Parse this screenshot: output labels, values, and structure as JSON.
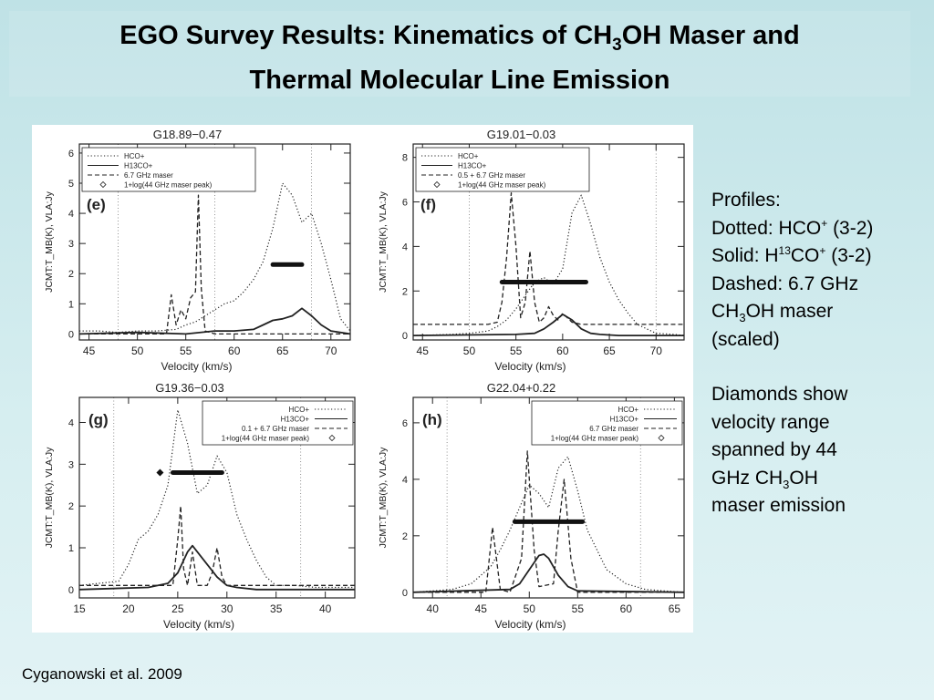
{
  "slide": {
    "title_line1_pre": "EGO Survey Results: Kinematics of CH",
    "title_line1_sub": "3",
    "title_line1_post": "OH Maser and",
    "title_line2": "Thermal Molecular Line Emission",
    "citation": "Cyganowski et al. 2009"
  },
  "sidebar": {
    "profiles_heading": "Profiles:",
    "dotted_pre": "Dotted: HCO",
    "dotted_sup": "+",
    "dotted_post": " (3-2)",
    "solid_pre": "Solid: H",
    "solid_sup1": "13",
    "solid_mid": "CO",
    "solid_sup2": "+",
    "solid_post": " (3-2)",
    "dashed_line1": "Dashed: 6.7 GHz",
    "dashed_line2_pre": "CH",
    "dashed_line2_sub": "3",
    "dashed_line2_post": "OH maser",
    "dashed_line3": "(scaled)",
    "diamonds_line1": "Diamonds show",
    "diamonds_line2": "velocity range",
    "diamonds_line3": "spanned by 44",
    "diamonds_line4_pre": "GHz CH",
    "diamonds_line4_sub": "3",
    "diamonds_line4_post": "OH",
    "diamonds_line5": "maser emission"
  },
  "colors": {
    "ink": "#222222",
    "panel_bg": "#ffffff"
  },
  "chart_data": [
    {
      "type": "line",
      "panel": "(e)",
      "title": "G18.89−0.47",
      "xlabel": "Velocity (km/s)",
      "ylabel": "JCMT:T_MB(K), VLA:Jy",
      "xlim": [
        44,
        72
      ],
      "ylim": [
        -0.2,
        6.3
      ],
      "xticks": [
        45,
        50,
        55,
        60,
        65,
        70
      ],
      "yticks": [
        0,
        1,
        2,
        3,
        4,
        5,
        6
      ],
      "vlines": [
        48,
        58,
        68
      ],
      "legend": [
        "HCO+",
        "H13CO+",
        "6.7 GHz maser",
        "1+log(44 GHz maser peak)"
      ],
      "legend_position": "top-left",
      "series": [
        {
          "name": "HCO+",
          "style": "dotted",
          "x": [
            44,
            46,
            48,
            50,
            52,
            54,
            55,
            56,
            57,
            58,
            59,
            60,
            61,
            62,
            63,
            64,
            65,
            66,
            67,
            68,
            69,
            70,
            71,
            72
          ],
          "y": [
            0.1,
            0.1,
            0.05,
            0.1,
            0.1,
            0.15,
            0.3,
            0.4,
            0.6,
            0.8,
            1.0,
            1.1,
            1.4,
            1.8,
            2.4,
            3.5,
            5.0,
            4.6,
            3.7,
            4.0,
            3.0,
            1.8,
            0.5,
            0.1
          ]
        },
        {
          "name": "H13CO+",
          "style": "solid",
          "x": [
            44,
            50,
            55,
            58,
            60,
            62,
            63,
            64,
            65,
            66,
            67,
            68,
            69,
            70,
            72
          ],
          "y": [
            0.0,
            0.05,
            0.0,
            0.1,
            0.1,
            0.15,
            0.3,
            0.45,
            0.5,
            0.6,
            0.85,
            0.6,
            0.3,
            0.1,
            0.0
          ]
        },
        {
          "name": "6.7 GHz maser",
          "style": "dashed",
          "x": [
            44,
            53,
            53.5,
            54,
            54.5,
            55,
            55.5,
            56,
            56.3,
            56.6,
            57,
            57.5,
            58,
            72
          ],
          "y": [
            0.0,
            0.0,
            1.3,
            0.3,
            0.8,
            0.5,
            1.2,
            1.4,
            4.6,
            1.5,
            0.1,
            0.05,
            0.0,
            0.0
          ]
        }
      ],
      "maser_44ghz_range": {
        "x": [
          64,
          67
        ],
        "y": 2.3
      }
    },
    {
      "type": "line",
      "panel": "(f)",
      "title": "G19.01−0.03",
      "xlabel": "Velocity (km/s)",
      "ylabel": "JCMT:T_MB(K), VLA:Jy",
      "xlim": [
        44,
        73
      ],
      "ylim": [
        -0.2,
        8.6
      ],
      "xticks": [
        45,
        50,
        55,
        60,
        65,
        70
      ],
      "yticks": [
        0,
        2,
        4,
        6,
        8
      ],
      "vlines": [
        50,
        70
      ],
      "legend": [
        "HCO+",
        "H13CO+",
        "0.5 + 6.7 GHz maser",
        "1+log(44 GHz maser peak)"
      ],
      "legend_position": "top-left",
      "series": [
        {
          "name": "HCO+",
          "style": "dotted",
          "x": [
            44,
            48,
            50,
            52,
            53,
            54,
            55,
            56,
            57,
            58,
            59,
            60,
            61,
            62,
            63,
            64,
            65,
            66,
            67,
            68,
            70,
            72,
            73
          ],
          "y": [
            0.0,
            0.05,
            0.1,
            0.2,
            0.4,
            0.7,
            1.2,
            1.8,
            2.4,
            2.6,
            2.3,
            3.0,
            5.5,
            6.3,
            5.0,
            3.5,
            2.4,
            1.6,
            1.0,
            0.5,
            0.1,
            0.05,
            0.0
          ]
        },
        {
          "name": "H13CO+",
          "style": "solid",
          "x": [
            44,
            55,
            57,
            58,
            59,
            60,
            61,
            62,
            63,
            64,
            66,
            73
          ],
          "y": [
            0.0,
            0.05,
            0.1,
            0.3,
            0.6,
            0.95,
            0.7,
            0.3,
            0.1,
            0.05,
            0.0,
            0.0
          ]
        },
        {
          "name": "0.5 + 6.7 GHz maser",
          "style": "dashed",
          "x": [
            44,
            52,
            53,
            53.5,
            54,
            54.5,
            55,
            55.5,
            56,
            56.5,
            57,
            57.5,
            58,
            58.5,
            59,
            59.5,
            60,
            61,
            62,
            73
          ],
          "y": [
            0.5,
            0.5,
            0.6,
            1.5,
            3.5,
            6.4,
            4.0,
            0.8,
            1.5,
            3.8,
            1.5,
            0.6,
            0.8,
            1.3,
            0.9,
            0.7,
            1.0,
            0.6,
            0.5,
            0.5
          ]
        }
      ],
      "maser_44ghz_range": {
        "x": [
          53.5,
          62.5
        ],
        "y": 2.4
      }
    },
    {
      "type": "line",
      "panel": "(g)",
      "title": "G19.36−0.03",
      "xlabel": "Velocity (km/s)",
      "ylabel": "JCMT:T_MB(K), VLA:Jy",
      "xlim": [
        15,
        43
      ],
      "ylim": [
        -0.2,
        4.6
      ],
      "xticks": [
        15,
        20,
        25,
        30,
        35,
        40
      ],
      "yticks": [
        0,
        1,
        2,
        3,
        4
      ],
      "vlines": [
        18.5,
        37.5
      ],
      "legend": [
        "HCO+",
        "H13CO+",
        "0.1 + 6.7 GHz maser",
        "1+log(44 GHz maser peak)"
      ],
      "legend_position": "top-right",
      "series": [
        {
          "name": "HCO+",
          "style": "dotted",
          "x": [
            15,
            17,
            19,
            20,
            21,
            22,
            23,
            24,
            25,
            26,
            27,
            28,
            29,
            30,
            31,
            32,
            33,
            34,
            35,
            37,
            39,
            41,
            43
          ],
          "y": [
            0.1,
            0.15,
            0.2,
            0.6,
            1.2,
            1.4,
            1.8,
            2.5,
            4.3,
            3.5,
            2.3,
            2.5,
            3.2,
            2.8,
            1.8,
            1.2,
            0.7,
            0.3,
            0.1,
            0.1,
            0.05,
            0.05,
            0.05
          ]
        },
        {
          "name": "H13CO+",
          "style": "solid",
          "x": [
            15,
            22,
            24,
            25,
            26,
            26.5,
            27,
            28,
            29,
            30,
            31,
            33,
            43
          ],
          "y": [
            0.0,
            0.05,
            0.15,
            0.4,
            0.9,
            1.05,
            0.9,
            0.6,
            0.3,
            0.1,
            0.05,
            0.0,
            0.0
          ]
        },
        {
          "name": "0.1 + 6.7 GHz maser",
          "style": "dashed",
          "x": [
            15,
            24.5,
            25,
            25.3,
            25.6,
            26,
            26.5,
            27,
            28,
            28.5,
            29,
            29.5,
            30,
            43
          ],
          "y": [
            0.1,
            0.1,
            1.2,
            2.0,
            0.5,
            0.1,
            0.9,
            0.1,
            0.1,
            0.4,
            1.0,
            0.3,
            0.1,
            0.1
          ]
        }
      ],
      "maser_44ghz_range": {
        "x": [
          24.5,
          29.5
        ],
        "y": 2.8
      },
      "maser_44ghz_extra_point": {
        "x": 23.2,
        "y": 2.8
      }
    },
    {
      "type": "line",
      "panel": "(h)",
      "title": "G22.04+0.22",
      "xlabel": "Velocity (km/s)",
      "ylabel": "JCMT:T_MB(K), VLA:Jy",
      "xlim": [
        38,
        66
      ],
      "ylim": [
        -0.2,
        6.9
      ],
      "xticks": [
        40,
        45,
        50,
        55,
        60,
        65
      ],
      "yticks": [
        0,
        2,
        4,
        6
      ],
      "vlines": [
        41.5,
        61.5
      ],
      "legend": [
        "HCO+",
        "H13CO+",
        "6.7 GHz maser",
        "1+log(44 GHz maser peak)"
      ],
      "legend_position": "top-right",
      "series": [
        {
          "name": "HCO+",
          "style": "dotted",
          "x": [
            38,
            40,
            42,
            44,
            46,
            47,
            48,
            49,
            50,
            51,
            52,
            53,
            54,
            55,
            56,
            58,
            60,
            62,
            64,
            66
          ],
          "y": [
            0.0,
            0.05,
            0.1,
            0.3,
            0.9,
            1.5,
            2.2,
            3.0,
            3.8,
            3.5,
            3.0,
            4.4,
            4.8,
            3.6,
            2.2,
            0.8,
            0.3,
            0.1,
            0.05,
            0.0
          ]
        },
        {
          "name": "H13CO+",
          "style": "solid",
          "x": [
            38,
            48,
            49,
            50,
            51,
            51.5,
            52,
            53,
            54,
            55,
            66
          ],
          "y": [
            0.0,
            0.1,
            0.3,
            0.8,
            1.3,
            1.35,
            1.2,
            0.6,
            0.2,
            0.05,
            0.0
          ]
        },
        {
          "name": "6.7 GHz maser",
          "style": "dashed",
          "x": [
            38,
            45.5,
            46.2,
            47,
            48,
            49.2,
            49.8,
            50.5,
            51,
            52.5,
            53,
            53.6,
            54.3,
            55,
            66
          ],
          "y": [
            0.0,
            0.0,
            2.3,
            0.1,
            0.0,
            1.2,
            5.0,
            1.5,
            0.2,
            0.3,
            2.2,
            4.0,
            1.2,
            0.0,
            0.0
          ]
        }
      ],
      "maser_44ghz_range": {
        "x": [
          48.5,
          55.5
        ],
        "y": 2.5
      }
    }
  ]
}
